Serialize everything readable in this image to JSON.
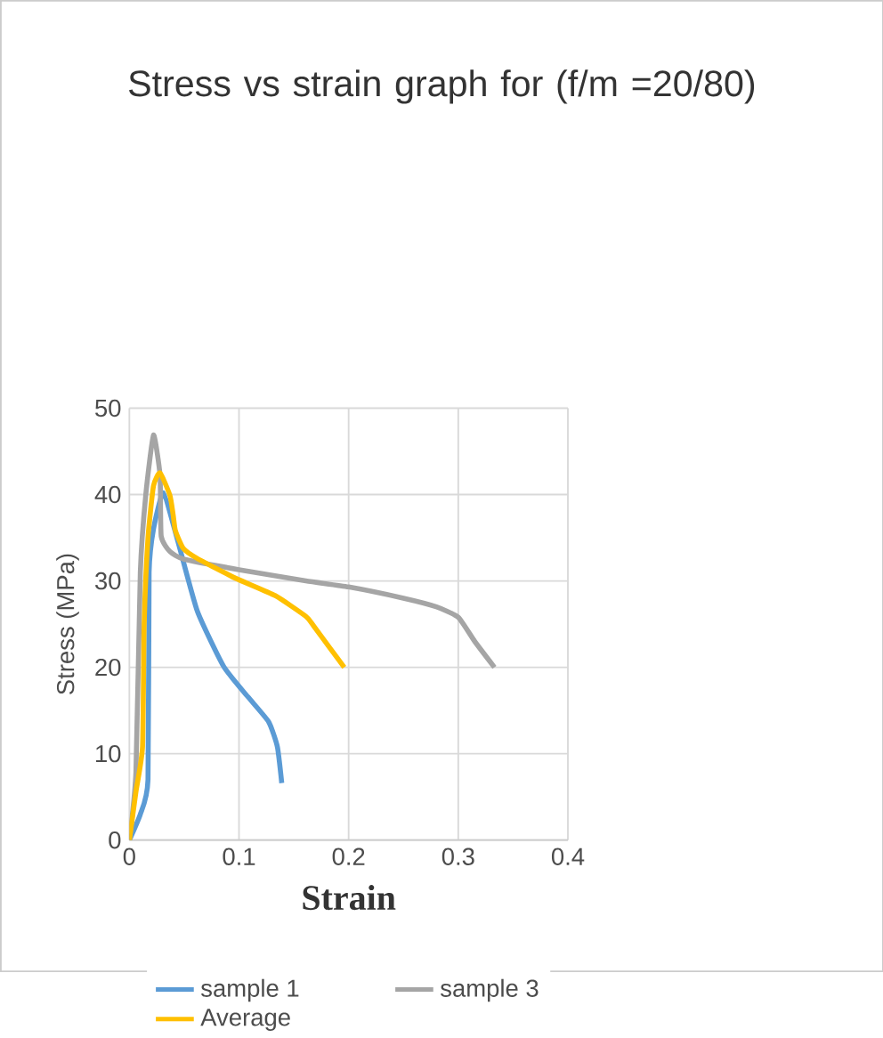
{
  "chart_data": {
    "type": "line",
    "title": "Stress vs strain graph for (f/m =20/80)",
    "xlabel": "Strain",
    "ylabel": "Stress (MPa)",
    "xlim": [
      0,
      0.4
    ],
    "xticks": [
      0,
      0.1,
      0.2,
      0.3,
      0.4
    ],
    "ylim": [
      0,
      50
    ],
    "yticks": [
      0,
      10,
      20,
      30,
      40,
      50
    ],
    "grid": true,
    "legend": "bottom",
    "marker": "none",
    "line_style": "solid",
    "series": [
      {
        "name": "sample 1",
        "color": "#5b9bd5",
        "x": [
          0,
          0.01,
          0.017,
          0.018,
          0.022,
          0.031,
          0.044,
          0.062,
          0.086,
          0.108,
          0.127,
          0.135,
          0.139
        ],
        "values": [
          0,
          3,
          7,
          31,
          36,
          40.2,
          34.7,
          26.5,
          20.1,
          16.6,
          13.7,
          10.8,
          6.6
        ]
      },
      {
        "name": "sample 3",
        "color": "#a5a5a5",
        "x": [
          0,
          0.006,
          0.01,
          0.015,
          0.022,
          0.028,
          0.029,
          0.037,
          0.05,
          0.1,
          0.161,
          0.2,
          0.25,
          0.28,
          0.3,
          0.315,
          0.333
        ],
        "values": [
          0,
          7.9,
          31,
          40,
          46.9,
          42.2,
          35.2,
          33.4,
          32.5,
          31.3,
          30,
          29.3,
          28,
          27,
          25.8,
          23,
          20
        ]
      },
      {
        "name": "Average",
        "color": "#ffc000",
        "x": [
          0,
          0.006,
          0.012,
          0.0135,
          0.017,
          0.022,
          0.028,
          0.037,
          0.04,
          0.042,
          0.049,
          0.062,
          0.097,
          0.133,
          0.161,
          0.168,
          0.182,
          0.196
        ],
        "values": [
          0,
          5.6,
          10.8,
          25,
          35,
          41,
          42.5,
          39.9,
          37.6,
          35.8,
          33.8,
          32.6,
          30.3,
          28.3,
          25.9,
          24.8,
          22.4,
          20
        ]
      }
    ]
  }
}
